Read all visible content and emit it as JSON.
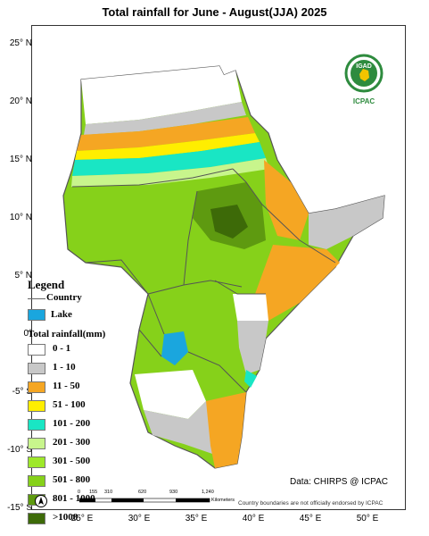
{
  "title": "Total rainfall for June - August(JJA) 2025",
  "latitude_labels": [
    "25° N",
    "20° N",
    "15° N",
    "10° N",
    "5° N",
    "0°",
    "-5° S",
    "-10° S",
    "-15° S"
  ],
  "longitude_labels": [
    "25° E",
    "30° E",
    "35° E",
    "40° E",
    "45° E",
    "50° E"
  ],
  "legend": {
    "title": "Legend",
    "country_label": "Country",
    "lake_label": "Lake",
    "lake_color": "#1aa6de",
    "rain_title": "Total rainfall(mm)",
    "classes": [
      {
        "label": "0 - 1",
        "color": "#ffffff"
      },
      {
        "label": "1 - 10",
        "color": "#c8c8c8"
      },
      {
        "label": "11 - 50",
        "color": "#f5a623"
      },
      {
        "label": "51 - 100",
        "color": "#ffee00"
      },
      {
        "label": "101 - 200",
        "color": "#19e6c4"
      },
      {
        "label": "201 - 300",
        "color": "#c8f58c"
      },
      {
        "label": "301 - 500",
        "color": "#9ee82a"
      },
      {
        "label": "501 - 800",
        "color": "#86d11a"
      },
      {
        "label": "801 - 1000",
        "color": "#5e9a10"
      },
      {
        "label": ">1000",
        "color": "#3d6a08"
      }
    ]
  },
  "credit": "Data: CHIRPS @ ICPAC",
  "disclaimer": "Country boundaries are not officially endorsed by ICPAC",
  "scalebar": {
    "labels": [
      "0",
      "155",
      "310",
      "620",
      "930",
      "1,240"
    ],
    "unit": "Kilometers"
  },
  "logo": {
    "name": "IGAD",
    "org": "ICPAC"
  }
}
